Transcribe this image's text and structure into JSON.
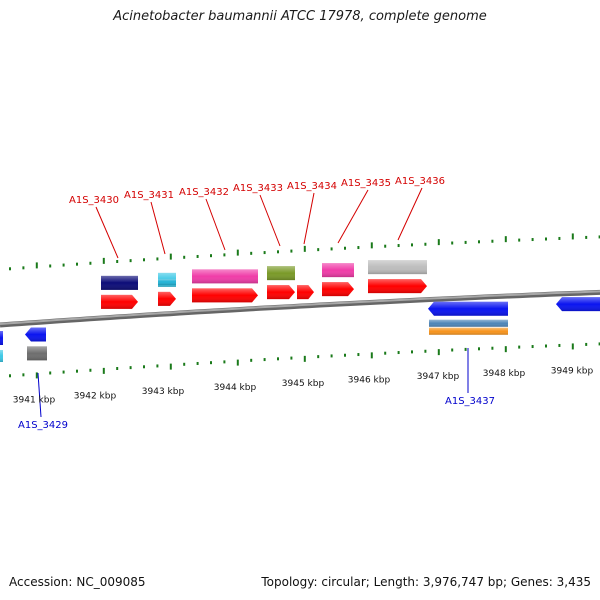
{
  "title": "Acinetobacter baumannii ATCC 17978, complete genome",
  "footer": {
    "accession_label": "Accession:",
    "accession": "NC_009085",
    "summary": "Topology: circular; Length: 3,976,747 bp; Genes: 3,435"
  },
  "ruler": {
    "unit": "kbp",
    "ticks": [
      {
        "label": "3941 kbp"
      },
      {
        "label": "3942 kbp"
      },
      {
        "label": "3943 kbp"
      },
      {
        "label": "3944 kbp"
      },
      {
        "label": "3945 kbp"
      },
      {
        "label": "3946 kbp"
      },
      {
        "label": "3947 kbp"
      },
      {
        "label": "3948 kbp"
      },
      {
        "label": "3949 kbp"
      }
    ]
  },
  "gene_labels": {
    "forward": [
      "A1S_3430",
      "A1S_3431",
      "A1S_3432",
      "A1S_3433",
      "A1S_3434",
      "A1S_3435",
      "A1S_3436"
    ],
    "reverse": [
      "A1S_3429",
      "A1S_3437"
    ]
  },
  "colors": {
    "forward_label": "#d40000",
    "reverse_label": "#0000cc",
    "cds": "#ff0000",
    "backbone": "#888888",
    "tick": "#1a7a1a",
    "blue_gene": "#0a14f0",
    "navy": "#0c0c78",
    "cyan": "#3cc8e6",
    "magenta": "#f03ca8",
    "olive": "#7a9a28",
    "grey": "#bdbdbd",
    "steelblue": "#4f86b8",
    "orange": "#f7941d"
  }
}
